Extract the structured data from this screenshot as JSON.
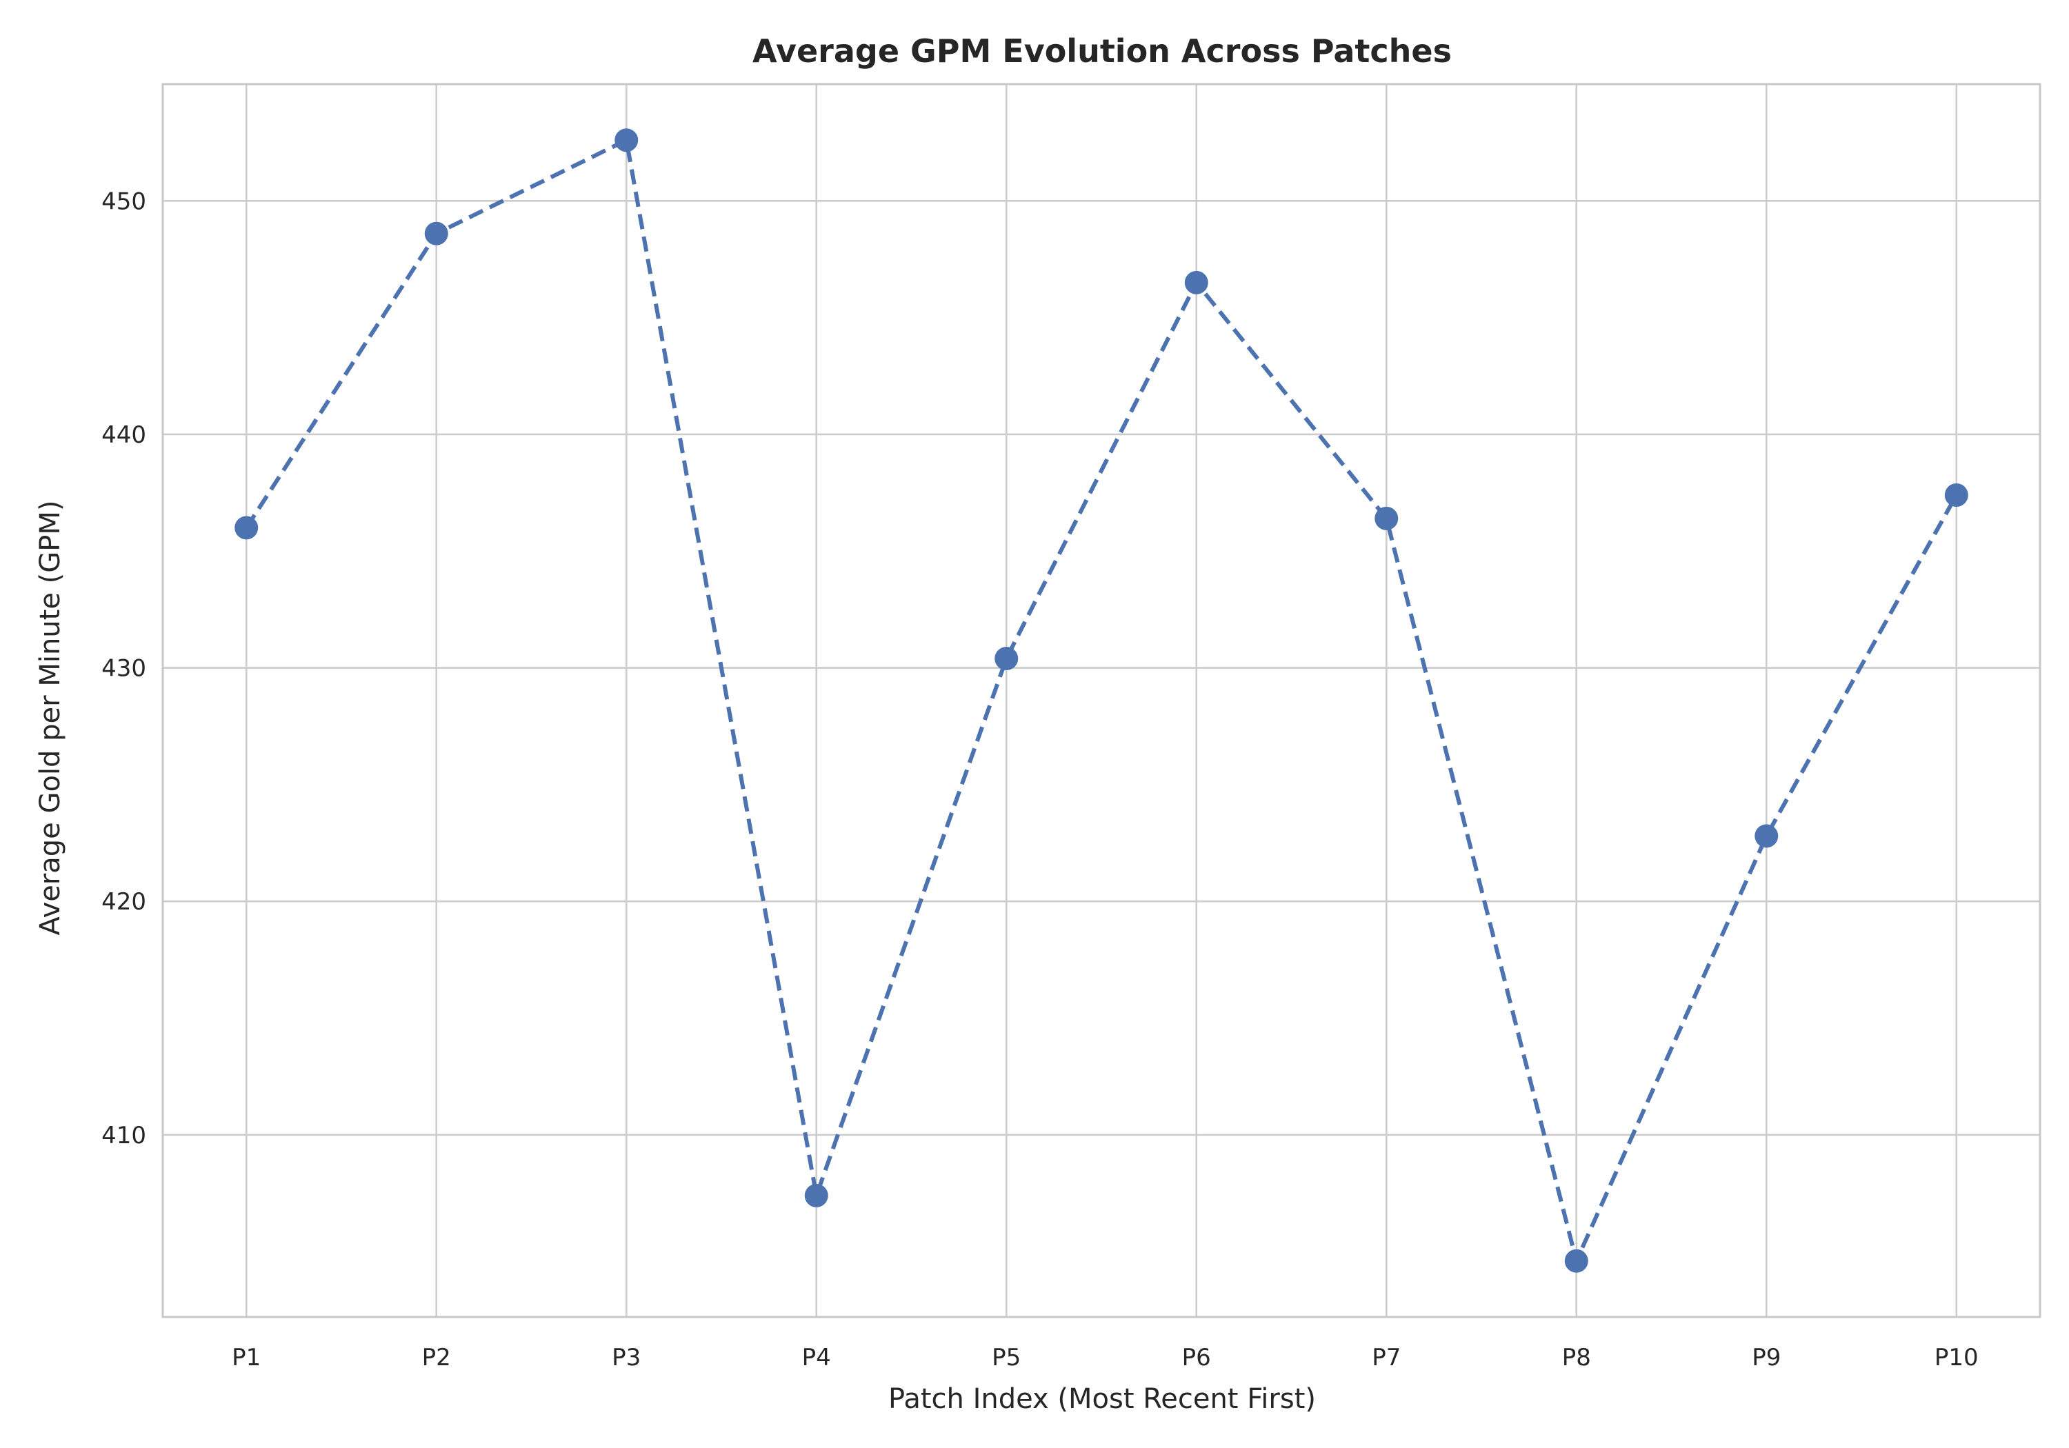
{
  "chart_data": {
    "type": "line",
    "title": "Average GPM Evolution Across Patches",
    "xlabel": "Patch Index (Most Recent First)",
    "ylabel": "Average Gold per Minute (GPM)",
    "categories": [
      "P1",
      "P2",
      "P3",
      "P4",
      "P5",
      "P6",
      "P7",
      "P8",
      "P9",
      "P10"
    ],
    "series": [
      {
        "values": [
          436.0,
          448.6,
          452.6,
          407.4,
          430.4,
          446.5,
          436.4,
          404.6,
          422.8,
          437.4
        ],
        "color": "#4c72b0",
        "line_style": "dashed",
        "marker": "circle"
      }
    ],
    "ylim": [
      402.2,
      455.0
    ],
    "yticks": [
      410,
      420,
      430,
      440,
      450
    ],
    "grid": true,
    "legend": "none"
  }
}
